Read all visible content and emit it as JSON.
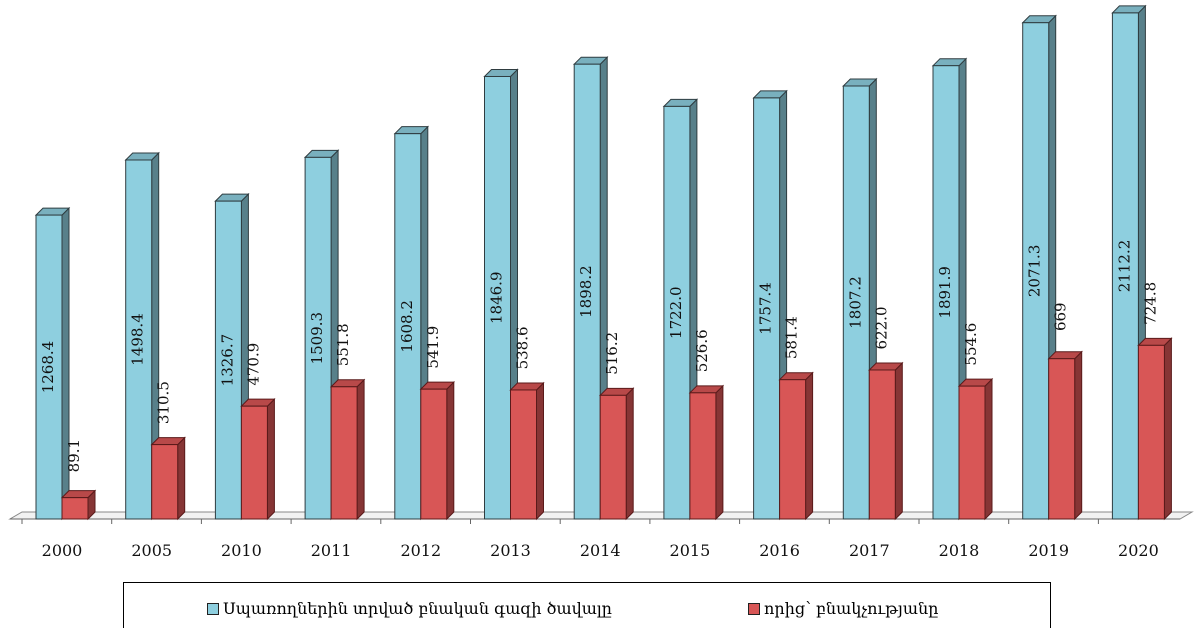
{
  "chart_data": {
    "type": "bar",
    "title": "",
    "xlabel": "",
    "ylabel": "",
    "ylim": [
      0,
      2200
    ],
    "grid": false,
    "legend_position": "bottom",
    "categories": [
      "2000",
      "2005",
      "2010",
      "2011",
      "2012",
      "2013",
      "2014",
      "2015",
      "2016",
      "2017",
      "2018",
      "2019",
      "2020"
    ],
    "series": [
      {
        "name": "Սպառողներին տրված բնական գազի ծավալը",
        "color": "#8ecfdf",
        "values": [
          1268.4,
          1498.4,
          1326.7,
          1509.3,
          1608.2,
          1846.9,
          1898.2,
          1722.0,
          1757.4,
          1807.2,
          1891.9,
          2071.3,
          2112.2
        ],
        "labels": [
          "1268.4",
          "1498.4",
          "1326.7",
          "1509.3",
          "1608.2",
          "1846.9",
          "1898.2",
          "1722.0",
          "1757.4",
          "1807.2",
          "1891.9",
          "2071.3",
          "2112.2"
        ]
      },
      {
        "name": "որից՝ բնակչությանը",
        "color": "#d85656",
        "values": [
          89.1,
          310.5,
          470.9,
          551.8,
          541.9,
          538.6,
          516.2,
          526.6,
          581.4,
          622.0,
          554.6,
          669,
          724.8
        ],
        "labels": [
          "89.1",
          "310.5",
          "470.9",
          "551.8",
          "541.9",
          "538.6",
          "516.2",
          "526.6",
          "581.4",
          "622.0",
          "554.6",
          "669",
          "724.8"
        ]
      }
    ]
  }
}
